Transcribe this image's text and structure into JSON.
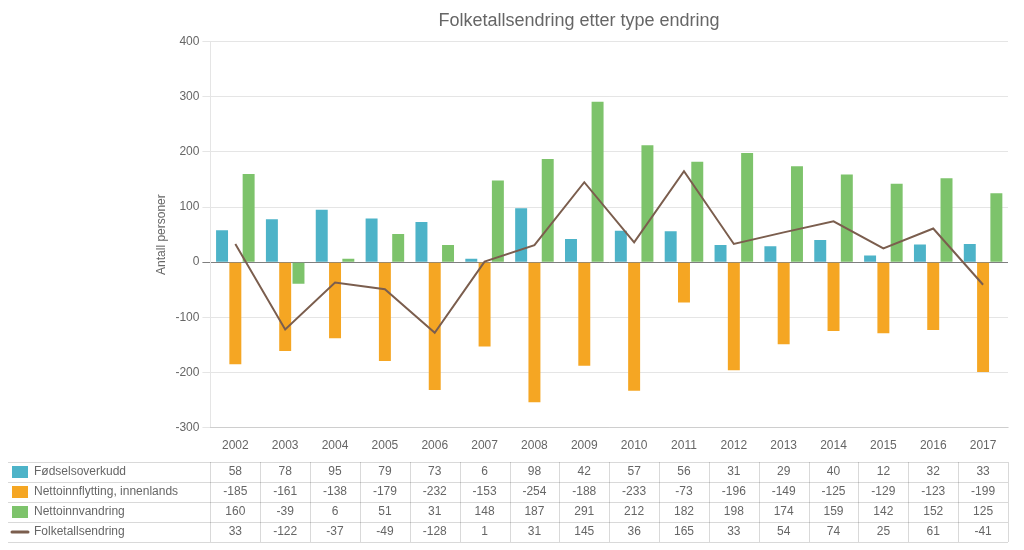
{
  "chart_data": {
    "type": "bar",
    "title": "Folketallsendring etter type endring",
    "categories": [
      "2002",
      "2003",
      "2004",
      "2005",
      "2006",
      "2007",
      "2008",
      "2009",
      "2010",
      "2011",
      "2012",
      "2013",
      "2014",
      "2015",
      "2016",
      "2017"
    ],
    "series": [
      {
        "name": "Fødselsoverkudd",
        "color": "#4db3c8",
        "values": [
          58,
          78,
          95,
          79,
          73,
          6,
          98,
          42,
          57,
          56,
          31,
          29,
          40,
          12,
          32,
          33
        ]
      },
      {
        "name": "Nettoinnflytting, innenlands",
        "color": "#f5a623",
        "values": [
          -185,
          -161,
          -138,
          -179,
          -232,
          -153,
          -254,
          -188,
          -233,
          -73,
          -196,
          -149,
          -125,
          -129,
          -123,
          -199
        ]
      },
      {
        "name": "Nettoinnvandring",
        "color": "#7dc36b",
        "values": [
          160,
          -39,
          6,
          51,
          31,
          148,
          187,
          291,
          212,
          182,
          198,
          174,
          159,
          142,
          152,
          125
        ]
      },
      {
        "name": "Folketallsendring",
        "type": "line",
        "color": "#7b5e4e",
        "values": [
          33,
          -122,
          -37,
          -49,
          -128,
          1,
          31,
          145,
          36,
          165,
          33,
          54,
          74,
          25,
          61,
          -41
        ]
      }
    ],
    "ylabel": "Antall personer",
    "ylim": [
      -300,
      400
    ],
    "yticks": [
      -300,
      -200,
      -100,
      0,
      100,
      200,
      300,
      400
    ],
    "grid": true
  }
}
